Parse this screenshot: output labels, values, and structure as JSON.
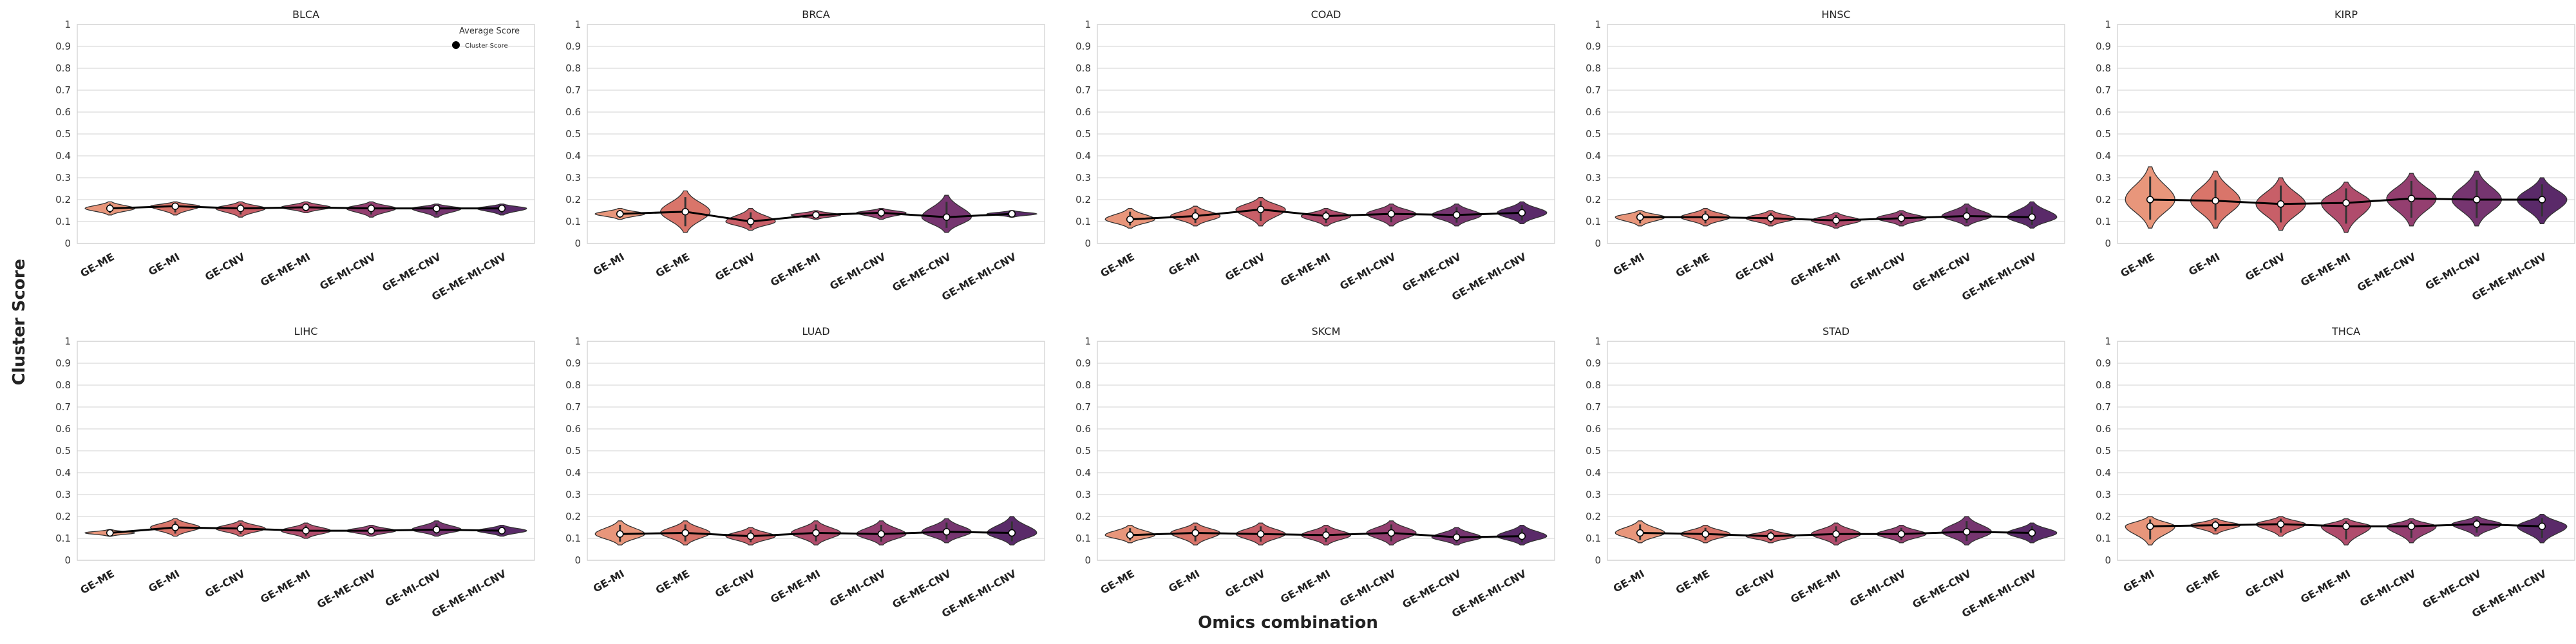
{
  "figure": {
    "ylabel": "Cluster Score",
    "xlabel": "Omics combination",
    "legend_title": "Average Score",
    "legend_label": "Cluster Score",
    "y_ticks": [
      "0",
      "0.1",
      "0.2",
      "0.3",
      "0.4",
      "0.5",
      "0.6",
      "0.7",
      "0.8",
      "0.9",
      "1"
    ]
  },
  "colors": {
    "palette": [
      "#e8967b",
      "#d9756a",
      "#c85f68",
      "#b04c6c",
      "#943f70",
      "#763570",
      "#5a2a69"
    ],
    "mean_line": "#000000",
    "grid": "#d9d9d9"
  },
  "chart_data": [
    {
      "type": "violin",
      "title": "BLCA",
      "ylim": [
        0,
        1
      ],
      "categories": [
        "GE-ME",
        "GE-MI",
        "GE-CNV",
        "GE-ME-MI",
        "GE-MI-CNV",
        "GE-ME-CNV",
        "GE-ME-MI-CNV"
      ],
      "means": [
        0.16,
        0.17,
        0.16,
        0.165,
        0.16,
        0.16,
        0.16
      ],
      "mins": [
        0.13,
        0.13,
        0.12,
        0.14,
        0.12,
        0.12,
        0.13
      ],
      "maxs": [
        0.19,
        0.19,
        0.19,
        0.19,
        0.19,
        0.18,
        0.18
      ],
      "legend": "top-right"
    },
    {
      "type": "violin",
      "title": "BRCA",
      "ylim": [
        0,
        1
      ],
      "categories": [
        "GE-MI",
        "GE-ME",
        "GE-CNV",
        "GE-ME-MI",
        "GE-MI-CNV",
        "GE-ME-CNV",
        "GE-ME-MI-CNV"
      ],
      "means": [
        0.135,
        0.145,
        0.1,
        0.13,
        0.14,
        0.12,
        0.135
      ],
      "mins": [
        0.11,
        0.05,
        0.06,
        0.11,
        0.11,
        0.05,
        0.12
      ],
      "maxs": [
        0.16,
        0.24,
        0.16,
        0.15,
        0.16,
        0.22,
        0.15
      ]
    },
    {
      "type": "violin",
      "title": "COAD",
      "ylim": [
        0,
        1
      ],
      "categories": [
        "GE-ME",
        "GE-MI",
        "GE-CNV",
        "GE-ME-MI",
        "GE-MI-CNV",
        "GE-ME-CNV",
        "GE-ME-MI-CNV"
      ],
      "means": [
        0.11,
        0.125,
        0.155,
        0.125,
        0.135,
        0.13,
        0.14
      ],
      "mins": [
        0.07,
        0.08,
        0.08,
        0.08,
        0.08,
        0.08,
        0.09
      ],
      "maxs": [
        0.16,
        0.17,
        0.21,
        0.16,
        0.18,
        0.18,
        0.19
      ]
    },
    {
      "type": "violin",
      "title": "HNSC",
      "ylim": [
        0,
        1
      ],
      "categories": [
        "GE-MI",
        "GE-ME",
        "GE-CNV",
        "GE-ME-MI",
        "GE-MI-CNV",
        "GE-ME-CNV",
        "GE-ME-MI-CNV"
      ],
      "means": [
        0.12,
        0.12,
        0.115,
        0.105,
        0.115,
        0.125,
        0.12
      ],
      "mins": [
        0.08,
        0.08,
        0.08,
        0.07,
        0.08,
        0.08,
        0.07
      ],
      "maxs": [
        0.15,
        0.16,
        0.15,
        0.14,
        0.15,
        0.18,
        0.19
      ]
    },
    {
      "type": "violin",
      "title": "KIRP",
      "ylim": [
        0,
        1
      ],
      "categories": [
        "GE-ME",
        "GE-MI",
        "GE-CNV",
        "GE-ME-MI",
        "GE-ME-CNV",
        "GE-MI-CNV",
        "GE-ME-MI-CNV"
      ],
      "means": [
        0.2,
        0.195,
        0.18,
        0.185,
        0.205,
        0.2,
        0.2
      ],
      "mins": [
        0.07,
        0.07,
        0.06,
        0.05,
        0.08,
        0.08,
        0.09
      ],
      "maxs": [
        0.35,
        0.33,
        0.3,
        0.28,
        0.32,
        0.33,
        0.3
      ]
    },
    {
      "type": "violin",
      "title": "LIHC",
      "ylim": [
        0,
        1
      ],
      "categories": [
        "GE-ME",
        "GE-MI",
        "GE-CNV",
        "GE-ME-MI",
        "GE-ME-CNV",
        "GE-MI-CNV",
        "GE-ME-MI-CNV"
      ],
      "means": [
        0.125,
        0.15,
        0.145,
        0.135,
        0.135,
        0.14,
        0.135
      ],
      "mins": [
        0.11,
        0.11,
        0.11,
        0.1,
        0.11,
        0.11,
        0.11
      ],
      "maxs": [
        0.14,
        0.19,
        0.18,
        0.17,
        0.16,
        0.18,
        0.16
      ]
    },
    {
      "type": "violin",
      "title": "LUAD",
      "ylim": [
        0,
        1
      ],
      "categories": [
        "GE-MI",
        "GE-ME",
        "GE-CNV",
        "GE-ME-MI",
        "GE-MI-CNV",
        "GE-ME-CNV",
        "GE-ME-MI-CNV"
      ],
      "means": [
        0.12,
        0.125,
        0.11,
        0.125,
        0.12,
        0.13,
        0.125
      ],
      "mins": [
        0.07,
        0.07,
        0.07,
        0.07,
        0.07,
        0.08,
        0.07
      ],
      "maxs": [
        0.18,
        0.18,
        0.15,
        0.18,
        0.18,
        0.19,
        0.2
      ]
    },
    {
      "type": "violin",
      "title": "SKCM",
      "ylim": [
        0,
        1
      ],
      "categories": [
        "GE-ME",
        "GE-MI",
        "GE-CNV",
        "GE-ME-MI",
        "GE-MI-CNV",
        "GE-ME-CNV",
        "GE-ME-MI-CNV"
      ],
      "means": [
        0.115,
        0.125,
        0.12,
        0.115,
        0.125,
        0.105,
        0.11
      ],
      "mins": [
        0.08,
        0.07,
        0.07,
        0.07,
        0.07,
        0.07,
        0.07
      ],
      "maxs": [
        0.16,
        0.17,
        0.17,
        0.16,
        0.18,
        0.15,
        0.16
      ]
    },
    {
      "type": "violin",
      "title": "STAD",
      "ylim": [
        0,
        1
      ],
      "categories": [
        "GE-MI",
        "GE-ME",
        "GE-CNV",
        "GE-ME-MI",
        "GE-MI-CNV",
        "GE-ME-CNV",
        "GE-ME-MI-CNV"
      ],
      "means": [
        0.125,
        0.12,
        0.11,
        0.12,
        0.12,
        0.13,
        0.125
      ],
      "mins": [
        0.08,
        0.08,
        0.08,
        0.07,
        0.08,
        0.07,
        0.08
      ],
      "maxs": [
        0.18,
        0.16,
        0.14,
        0.17,
        0.16,
        0.2,
        0.17
      ]
    },
    {
      "type": "violin",
      "title": "THCA",
      "ylim": [
        0,
        1
      ],
      "categories": [
        "GE-MI",
        "GE-ME",
        "GE-CNV",
        "GE-ME-MI",
        "GE-MI-CNV",
        "GE-ME-CNV",
        "GE-ME-MI-CNV"
      ],
      "means": [
        0.155,
        0.16,
        0.165,
        0.155,
        0.155,
        0.165,
        0.155
      ],
      "mins": [
        0.07,
        0.12,
        0.11,
        0.07,
        0.08,
        0.11,
        0.08
      ],
      "maxs": [
        0.2,
        0.19,
        0.2,
        0.19,
        0.19,
        0.2,
        0.21
      ]
    }
  ]
}
